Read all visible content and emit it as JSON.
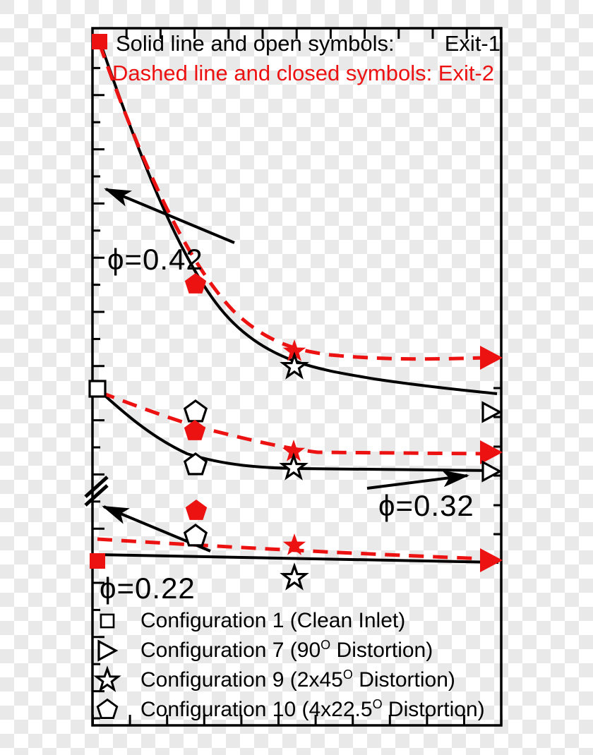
{
  "colors": {
    "red": "#ed1212",
    "black": "#000000",
    "checker_light": "#ffffff",
    "checker_gray": "#e9e9e9"
  },
  "header": {
    "line1_label": "Solid line and open symbols:",
    "line1_value": "Exit-1",
    "line2": "Dashed line and closed symbols: Exit-2"
  },
  "annotations": [
    {
      "text": "ϕ=0.42"
    },
    {
      "text": "ϕ=0.32"
    },
    {
      "text": "ϕ=0.22"
    }
  ],
  "legend": {
    "items": [
      {
        "symbol": "open-square",
        "pre": "Configuration 1 (Clean Inlet)",
        "sup": "",
        "post": ""
      },
      {
        "symbol": "open-right-triangle",
        "pre": "Configuration 7 (90",
        "sup": "O",
        "post": " Distortion)"
      },
      {
        "symbol": "open-star",
        "pre": "Configuration 9 (2x45",
        "sup": "O",
        "post": " Distortion)"
      },
      {
        "symbol": "open-pentagon",
        "pre": "Configuration 10 (4x22.5",
        "sup": "O",
        "post": " Distortion)"
      }
    ]
  },
  "chart_data": {
    "type": "line",
    "title": "",
    "xlabel": "",
    "ylabel": "",
    "x_tick_labels": [],
    "y_tick_labels": [],
    "grid": false,
    "legend_position": "bottom-left-inside",
    "note": "Axes carry tick marks but no numeric labels; coordinates are fractions of the plot box (x: 0=left..1=right, y: 0=bottom..1=top). Square=Configuration 1 (Clean Inlet), right-triangle=Configuration 7 (90deg), star=Configuration 9 (2x45deg), pentagon=Configuration 10 (4x22.5deg). Solid black line + open symbols = Exit-1; red dashed line + closed symbols = Exit-2. Left axis has a break mark near y-fraction 0.34.",
    "marker_x_by_configuration": {
      "Configuration 1": 0.01,
      "Configuration 10": 0.25,
      "Configuration 9": 0.49,
      "Configuration 7": 0.98
    },
    "groups": [
      {
        "label": "ϕ=0.42",
        "series": [
          {
            "name": "Exit-1 (solid, open symbols)",
            "points": {
              "square": [
                0.015,
                0.981
              ],
              "star": [
                0.494,
                0.514
              ],
              "right_triangle": [
                0.979,
                0.449
              ]
            }
          },
          {
            "name": "Exit-2 (dashed, closed symbols)",
            "points": {
              "square": [
                0.017,
                0.98
              ],
              "pentagon": [
                0.252,
                0.632
              ],
              "star": [
                0.494,
                0.536
              ],
              "right_triangle": [
                0.984,
                0.527
              ]
            }
          }
        ]
      },
      {
        "label": "ϕ=0.32",
        "series": [
          {
            "name": "Exit-1 (solid, open symbols)",
            "points": {
              "square": [
                0.012,
                0.484
              ],
              "pentagon_high": [
                0.252,
                0.449
              ],
              "pentagon_low": [
                0.252,
                0.373
              ],
              "star": [
                0.492,
                0.369
              ],
              "right_triangle": [
                0.979,
                0.364
              ]
            }
          },
          {
            "name": "Exit-2 (dashed, closed symbols)",
            "points": {
              "pentagon": [
                0.25,
                0.424
              ],
              "star": [
                0.492,
                0.393
              ],
              "right_triangle": [
                0.984,
                0.392
              ]
            }
          }
        ]
      },
      {
        "label": "ϕ=0.22",
        "series": [
          {
            "name": "Exit-1 (solid, open symbols)",
            "points": {
              "pentagon": [
                0.252,
                0.271
              ],
              "star": [
                0.494,
                0.212
              ]
            }
          },
          {
            "name": "Exit-2 (dashed, closed symbols)",
            "points": {
              "square": [
                0.012,
                0.236
              ],
              "pentagon": [
                0.254,
                0.308
              ],
              "star": [
                0.494,
                0.258
              ],
              "right_triangle": [
                0.984,
                0.237
              ]
            }
          }
        ]
      }
    ]
  }
}
